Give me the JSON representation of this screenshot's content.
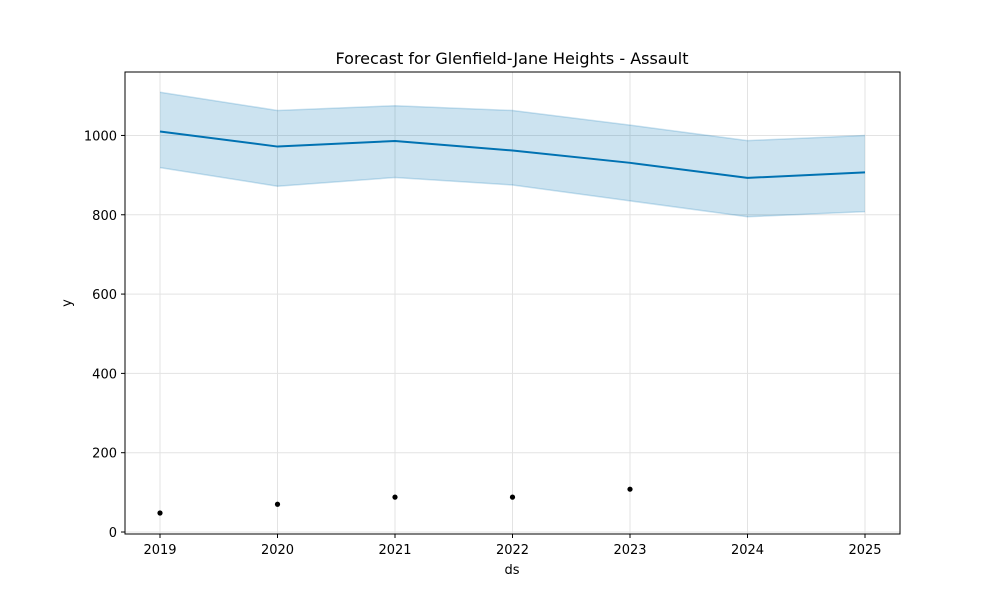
{
  "chart_data": {
    "type": "line",
    "title": "Forecast for Glenfield-Jane Heights - Assault",
    "xlabel": "ds",
    "ylabel": "y",
    "x": [
      "2019",
      "2020",
      "2021",
      "2022",
      "2023",
      "2024",
      "2025"
    ],
    "x_ticks": [
      "2019",
      "2020",
      "2021",
      "2022",
      "2023",
      "2024",
      "2025"
    ],
    "y_ticks": [
      0,
      200,
      400,
      600,
      800,
      1000
    ],
    "ylim": [
      -5,
      1160
    ],
    "grid": true,
    "series": [
      {
        "kind": "forecast",
        "values": [
          1010,
          972,
          986,
          962,
          931,
          893,
          907
        ],
        "color": "#0072b2"
      },
      {
        "kind": "uncertainty-interval",
        "lower": [
          919,
          872,
          894,
          875,
          835,
          795,
          808
        ],
        "upper": [
          1109,
          1063,
          1075,
          1063,
          1026,
          987,
          1000
        ],
        "color": "#0072b2"
      },
      {
        "kind": "observed",
        "x": [
          "2019",
          "2020",
          "2021",
          "2022",
          "2023"
        ],
        "values": [
          48,
          70,
          88,
          88,
          108
        ],
        "color": "#000000"
      }
    ]
  }
}
